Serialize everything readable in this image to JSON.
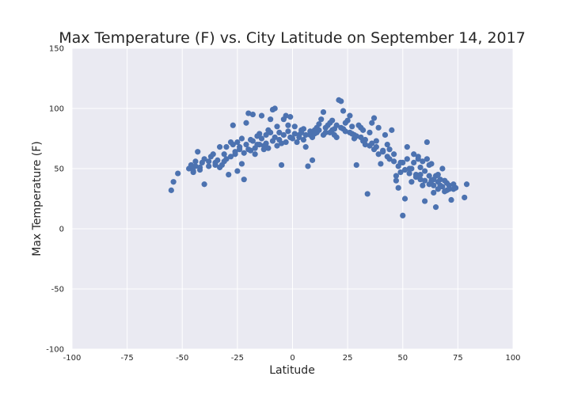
{
  "chart_data": {
    "type": "scatter",
    "title": "Max Temperature (F) vs. City Latitude on September 14, 2017",
    "xlabel": "Latitude",
    "ylabel": "Max Temperature (F)",
    "xlim": [
      -100,
      100
    ],
    "ylim": [
      -100,
      150
    ],
    "xticks": [
      -100,
      -75,
      -50,
      -25,
      0,
      25,
      50,
      75,
      100
    ],
    "yticks": [
      -100,
      -50,
      0,
      50,
      100,
      150
    ],
    "grid": true,
    "background": "#eaeaf2",
    "gridColor": "#ffffff",
    "markerColor": "#4c72b0",
    "series": [
      {
        "points": [
          [
            -55,
            32
          ],
          [
            -54,
            39
          ],
          [
            -52,
            46
          ],
          [
            -47,
            50
          ],
          [
            -46,
            53
          ],
          [
            -45,
            47
          ],
          [
            -44,
            52
          ],
          [
            -43,
            64
          ],
          [
            -42,
            51
          ],
          [
            -41,
            55
          ],
          [
            -40,
            37
          ],
          [
            -38,
            52
          ],
          [
            -37,
            60
          ],
          [
            -35,
            55
          ],
          [
            -33,
            68
          ],
          [
            -32,
            53
          ],
          [
            -31,
            62
          ],
          [
            -30,
            58
          ],
          [
            -29,
            45
          ],
          [
            -28,
            72
          ],
          [
            -27,
            86
          ],
          [
            -26,
            62
          ],
          [
            -25,
            48
          ],
          [
            -24,
            66
          ],
          [
            -23,
            54
          ],
          [
            -22,
            41
          ],
          [
            -21,
            88
          ],
          [
            -20,
            96
          ],
          [
            -19,
            74
          ],
          [
            -18,
            95
          ],
          [
            -17,
            62
          ],
          [
            -16,
            70
          ],
          [
            -15,
            79
          ],
          [
            -14,
            94
          ],
          [
            -13,
            69
          ],
          [
            -12,
            78
          ],
          [
            -11,
            82
          ],
          [
            -10,
            91
          ],
          [
            -9,
            99
          ],
          [
            -8,
            100
          ],
          [
            -7,
            85
          ],
          [
            -6,
            80
          ],
          [
            -5,
            53
          ],
          [
            -4,
            91
          ],
          [
            -3,
            94
          ],
          [
            -2,
            86
          ],
          [
            -1,
            93
          ],
          [
            0,
            75
          ],
          [
            1,
            85
          ],
          [
            2,
            72
          ],
          [
            3,
            78
          ],
          [
            4,
            80
          ],
          [
            5,
            83
          ],
          [
            6,
            68
          ],
          [
            7,
            52
          ],
          [
            8,
            78
          ],
          [
            9,
            57
          ],
          [
            10,
            82
          ],
          [
            11,
            84
          ],
          [
            12,
            87
          ],
          [
            13,
            91
          ],
          [
            14,
            97
          ],
          [
            15,
            80
          ],
          [
            16,
            86
          ],
          [
            17,
            88
          ],
          [
            18,
            90
          ],
          [
            19,
            78
          ],
          [
            20,
            76
          ],
          [
            21,
            107
          ],
          [
            22,
            106
          ],
          [
            23,
            98
          ],
          [
            24,
            88
          ],
          [
            25,
            90
          ],
          [
            26,
            94
          ],
          [
            27,
            85
          ],
          [
            28,
            75
          ],
          [
            29,
            53
          ],
          [
            30,
            86
          ],
          [
            31,
            84
          ],
          [
            32,
            82
          ],
          [
            33,
            70
          ],
          [
            34,
            29
          ],
          [
            35,
            80
          ],
          [
            36,
            88
          ],
          [
            37,
            92
          ],
          [
            38,
            73
          ],
          [
            39,
            84
          ],
          [
            40,
            54
          ],
          [
            41,
            65
          ],
          [
            42,
            78
          ],
          [
            43,
            70
          ],
          [
            44,
            66
          ],
          [
            45,
            82
          ],
          [
            46,
            62
          ],
          [
            47,
            40
          ],
          [
            48,
            34
          ],
          [
            49,
            55
          ],
          [
            50,
            11
          ],
          [
            51,
            25
          ],
          [
            52,
            68
          ],
          [
            53,
            50
          ],
          [
            54,
            39
          ],
          [
            55,
            62
          ],
          [
            56,
            45
          ],
          [
            57,
            58
          ],
          [
            58,
            41
          ],
          [
            59,
            36
          ],
          [
            60,
            23
          ],
          [
            61,
            72
          ],
          [
            62,
            53
          ],
          [
            63,
            40
          ],
          [
            64,
            30
          ],
          [
            65,
            18
          ],
          [
            66,
            45
          ],
          [
            67,
            36
          ],
          [
            68,
            50
          ],
          [
            69,
            31
          ],
          [
            70,
            38
          ],
          [
            71,
            33
          ],
          [
            72,
            24
          ],
          [
            73,
            37
          ],
          [
            74,
            34
          ],
          [
            78,
            26
          ],
          [
            79,
            37
          ],
          [
            -46,
            51
          ],
          [
            -44,
            56
          ],
          [
            -40,
            58
          ],
          [
            -36,
            62
          ],
          [
            -34,
            57
          ],
          [
            -30,
            68
          ],
          [
            -27,
            70
          ],
          [
            -25,
            72
          ],
          [
            -23,
            75
          ],
          [
            -21,
            70
          ],
          [
            -20,
            66
          ],
          [
            -18,
            73
          ],
          [
            -16,
            77
          ],
          [
            -14,
            75
          ],
          [
            -12,
            71
          ],
          [
            -10,
            80
          ],
          [
            -8,
            76
          ],
          [
            -6,
            74
          ],
          [
            -4,
            78
          ],
          [
            -2,
            81
          ],
          [
            1,
            79
          ],
          [
            3,
            76
          ],
          [
            5,
            74
          ],
          [
            8,
            81
          ],
          [
            10,
            79
          ],
          [
            12,
            82
          ],
          [
            15,
            84
          ],
          [
            18,
            82
          ],
          [
            20,
            86
          ],
          [
            23,
            83
          ],
          [
            26,
            80
          ],
          [
            28,
            78
          ],
          [
            31,
            76
          ],
          [
            33,
            74
          ],
          [
            36,
            71
          ],
          [
            38,
            68
          ],
          [
            41,
            64
          ],
          [
            43,
            60
          ],
          [
            46,
            56
          ],
          [
            48,
            52
          ],
          [
            51,
            49
          ],
          [
            53,
            46
          ],
          [
            56,
            43
          ],
          [
            58,
            51
          ],
          [
            60,
            48
          ],
          [
            62,
            44
          ],
          [
            64,
            41
          ],
          [
            66,
            39
          ],
          [
            68,
            35
          ],
          [
            70,
            32
          ],
          [
            59,
            56
          ],
          [
            61,
            58
          ],
          [
            63,
            54
          ],
          [
            57,
            60
          ],
          [
            55,
            55
          ],
          [
            52,
            58
          ],
          [
            49,
            47
          ],
          [
            47,
            44
          ],
          [
            44,
            58
          ],
          [
            39,
            62
          ],
          [
            37,
            66
          ],
          [
            35,
            69
          ],
          [
            32,
            73
          ],
          [
            29,
            77
          ],
          [
            27,
            79
          ],
          [
            24,
            81
          ],
          [
            22,
            84
          ],
          [
            19,
            83
          ],
          [
            17,
            80
          ],
          [
            14,
            78
          ],
          [
            11,
            80
          ],
          [
            9,
            76
          ],
          [
            6,
            78
          ],
          [
            4,
            82
          ],
          [
            -1,
            76
          ],
          [
            -3,
            72
          ],
          [
            -5,
            71
          ],
          [
            -7,
            69
          ],
          [
            -9,
            73
          ],
          [
            -11,
            67
          ],
          [
            -13,
            66
          ],
          [
            -15,
            70
          ],
          [
            -17,
            67
          ],
          [
            -19,
            65
          ],
          [
            -22,
            63
          ],
          [
            -24,
            68
          ],
          [
            -26,
            64
          ],
          [
            -28,
            60
          ],
          [
            -31,
            56
          ],
          [
            -33,
            51
          ],
          [
            -35,
            53
          ],
          [
            -38,
            56
          ],
          [
            -42,
            49
          ],
          [
            -45,
            48
          ],
          [
            65,
            44
          ],
          [
            67,
            41
          ],
          [
            69,
            40
          ],
          [
            71,
            36
          ],
          [
            73,
            33
          ],
          [
            62,
            37
          ],
          [
            60,
            40
          ],
          [
            58,
            45
          ],
          [
            54,
            50
          ],
          [
            50,
            55
          ],
          [
            66,
            33
          ],
          [
            64,
            36
          ]
        ]
      }
    ]
  }
}
